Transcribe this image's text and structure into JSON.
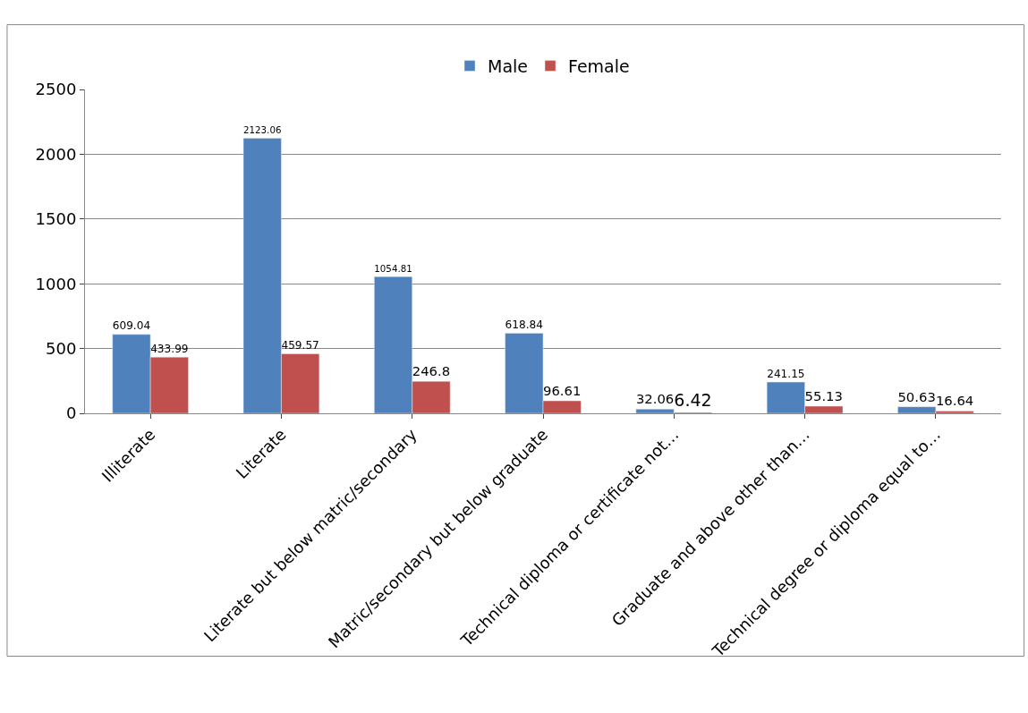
{
  "chart_data": {
    "type": "bar",
    "categories": [
      "Illiterate",
      "Literate",
      "Literate but below matric/secondary",
      "Matric/secondary but below graduate",
      "Technical diploma or certificate not…",
      "Graduate and above other than…",
      "Technical degree or diploma equal to…"
    ],
    "series": [
      {
        "name": "Male",
        "color": "#4f81bd",
        "values": [
          609.04,
          2123.06,
          1054.81,
          618.84,
          32.06,
          241.15,
          50.63
        ]
      },
      {
        "name": "Female",
        "color": "#c0504d",
        "values": [
          433.99,
          459.57,
          246.8,
          96.61,
          6.42,
          55.13,
          16.64
        ]
      }
    ],
    "ylim": [
      0,
      2500
    ],
    "yticks": [
      0,
      500,
      1000,
      1500,
      2000,
      2500
    ],
    "grid": "y",
    "legend": "top",
    "data_labels": true
  }
}
